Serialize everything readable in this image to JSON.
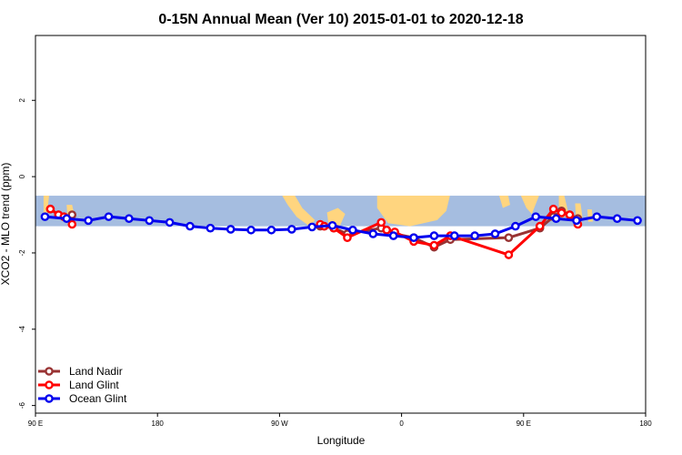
{
  "chart_data": {
    "type": "line",
    "title": "0-15N Annual Mean (Ver 10)   2015-01-01 to 2020-12-18",
    "xlabel": "Longitude",
    "ylabel": "XCO2 - MLO trend (ppm)",
    "xlim": [
      90,
      540
    ],
    "ylim": [
      -6.2,
      3.7
    ],
    "x_ticks": [
      90,
      180,
      270,
      360,
      450,
      540
    ],
    "x_tick_labels": [
      "90 E",
      "180",
      "90 W",
      "0",
      "90 E",
      "180"
    ],
    "y_ticks": [
      -6,
      -4,
      -2,
      0,
      2
    ],
    "y_tick_labels": [
      "-6",
      "-4",
      "-2",
      "0",
      "2"
    ],
    "grid": false,
    "legend_position": "bottom-left",
    "series": [
      {
        "name": "Land Nadir",
        "color": "#993333",
        "x": [
          101,
          107,
          111,
          117,
          300,
          303,
          310,
          320,
          345,
          349,
          355,
          369,
          384,
          396,
          439,
          462,
          472,
          478,
          484,
          490
        ],
        "y": [
          -0.85,
          -1.0,
          -1.05,
          -1.0,
          -1.3,
          -1.3,
          -1.35,
          -1.5,
          -1.35,
          -1.4,
          -1.5,
          -1.6,
          -1.85,
          -1.65,
          -1.6,
          -1.35,
          -1.05,
          -0.9,
          -1.0,
          -1.1
        ]
      },
      {
        "name": "Land Glint",
        "color": "#ff0000",
        "x": [
          101,
          107,
          111,
          117,
          300,
          303,
          310,
          320,
          345,
          349,
          355,
          369,
          384,
          396,
          439,
          462,
          472,
          478,
          484,
          490
        ],
        "y": [
          -0.85,
          -1.0,
          -1.05,
          -1.25,
          -1.25,
          -1.3,
          -1.35,
          -1.6,
          -1.2,
          -1.4,
          -1.45,
          -1.7,
          -1.8,
          -1.55,
          -2.05,
          -1.3,
          -0.85,
          -0.95,
          -1.0,
          -1.25
        ]
      },
      {
        "name": "Ocean Glint",
        "color": "#0000ee",
        "x": [
          97,
          113,
          129,
          144,
          159,
          174,
          189,
          204,
          219,
          234,
          249,
          264,
          279,
          294,
          309,
          324,
          339,
          354,
          369,
          384,
          399,
          414,
          429,
          444,
          459,
          474,
          489,
          504,
          519,
          534
        ],
        "y": [
          -1.05,
          -1.1,
          -1.15,
          -1.05,
          -1.1,
          -1.15,
          -1.2,
          -1.3,
          -1.35,
          -1.38,
          -1.4,
          -1.4,
          -1.38,
          -1.32,
          -1.28,
          -1.4,
          -1.5,
          -1.55,
          -1.6,
          -1.55,
          -1.55,
          -1.55,
          -1.5,
          -1.3,
          -1.05,
          -1.1,
          -1.15,
          -1.05,
          -1.1,
          -1.15
        ]
      }
    ],
    "background_map": {
      "ocean_color": "#a5bde0",
      "land_color": "#ffd57f",
      "lat_band": [
        0,
        15
      ],
      "y_range": [
        -0.5,
        -1.3
      ]
    }
  }
}
